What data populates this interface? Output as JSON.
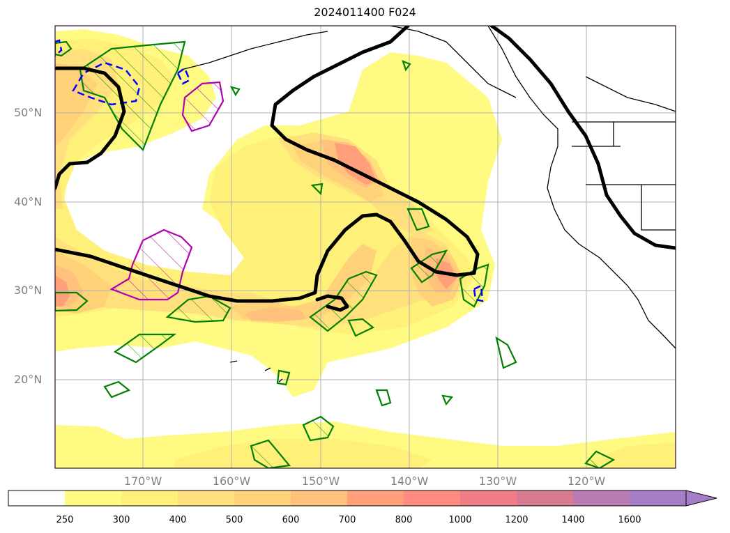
{
  "title": "2024011400 F024",
  "lat_labels": [
    "50°N",
    "40°N",
    "30°N",
    "20°N"
  ],
  "lon_labels": [
    "170°W",
    "160°W",
    "150°W",
    "140°W",
    "130°W",
    "120°W"
  ],
  "colorbar": {
    "levels": [
      "250",
      "300",
      "400",
      "500",
      "600",
      "700",
      "800",
      "1000",
      "1200",
      "1400",
      "1600"
    ],
    "colors": [
      "#ffffff",
      "#fffa82",
      "#fff079",
      "#ffe07c",
      "#ffd27a",
      "#ffc17b",
      "#ffa07a",
      "#ff8a80",
      "#ee7d86",
      "#d77c90",
      "#bb7bb3",
      "#a57ec6"
    ],
    "extend": "max"
  },
  "contour_colors": {
    "height": "#000000",
    "green_hatched": "#008000",
    "magenta_hatched": "#b000b0",
    "blue_dashed": "#0000ff"
  }
}
